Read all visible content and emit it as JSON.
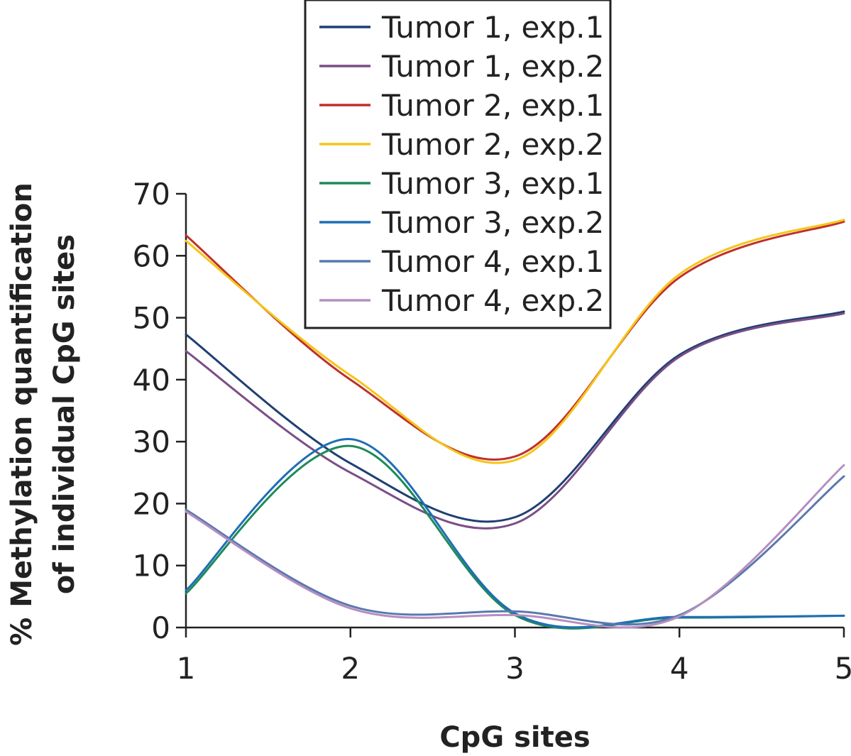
{
  "chart_data": {
    "type": "line",
    "title": "",
    "xlabel": "CpG sites",
    "ylabel_line1": "% Methylation quantification",
    "ylabel_line2": "of individual CpG sites",
    "x": [
      1,
      2,
      3,
      4,
      5
    ],
    "x_ticks": [
      "1",
      "2",
      "3",
      "4",
      "5"
    ],
    "y_ticks": [
      "0",
      "10",
      "20",
      "30",
      "40",
      "50",
      "60",
      "70"
    ],
    "xlim": [
      1,
      5
    ],
    "ylim": [
      0,
      70
    ],
    "grid": false,
    "legend_position": "top-center",
    "series": [
      {
        "name": "Tumor 1, exp.1",
        "color": "#1f3f73",
        "values": [
          47.3,
          26.5,
          17.8,
          44.0,
          51.0
        ]
      },
      {
        "name": "Tumor 1, exp.2",
        "color": "#7b4e86",
        "values": [
          44.6,
          25.0,
          16.8,
          43.7,
          50.7
        ]
      },
      {
        "name": "Tumor 2, exp.1",
        "color": "#c0302a",
        "values": [
          63.3,
          40.0,
          27.6,
          56.5,
          65.5
        ]
      },
      {
        "name": "Tumor 2, exp.2",
        "color": "#f5c518",
        "values": [
          62.4,
          40.7,
          27.0,
          57.0,
          65.8
        ]
      },
      {
        "name": "Tumor 3, exp.1",
        "color": "#1e8a5a",
        "values": [
          5.5,
          29.3,
          2.0,
          1.6,
          1.9
        ]
      },
      {
        "name": "Tumor 3, exp.2",
        "color": "#1f6eb5",
        "values": [
          6.0,
          30.4,
          2.3,
          1.7,
          1.9
        ]
      },
      {
        "name": "Tumor 4, exp.1",
        "color": "#5a78b0",
        "values": [
          19.0,
          3.5,
          2.6,
          2.0,
          24.4
        ]
      },
      {
        "name": "Tumor 4, exp.2",
        "color": "#b58fbf",
        "values": [
          18.7,
          3.1,
          2.0,
          1.8,
          26.2
        ]
      }
    ]
  }
}
